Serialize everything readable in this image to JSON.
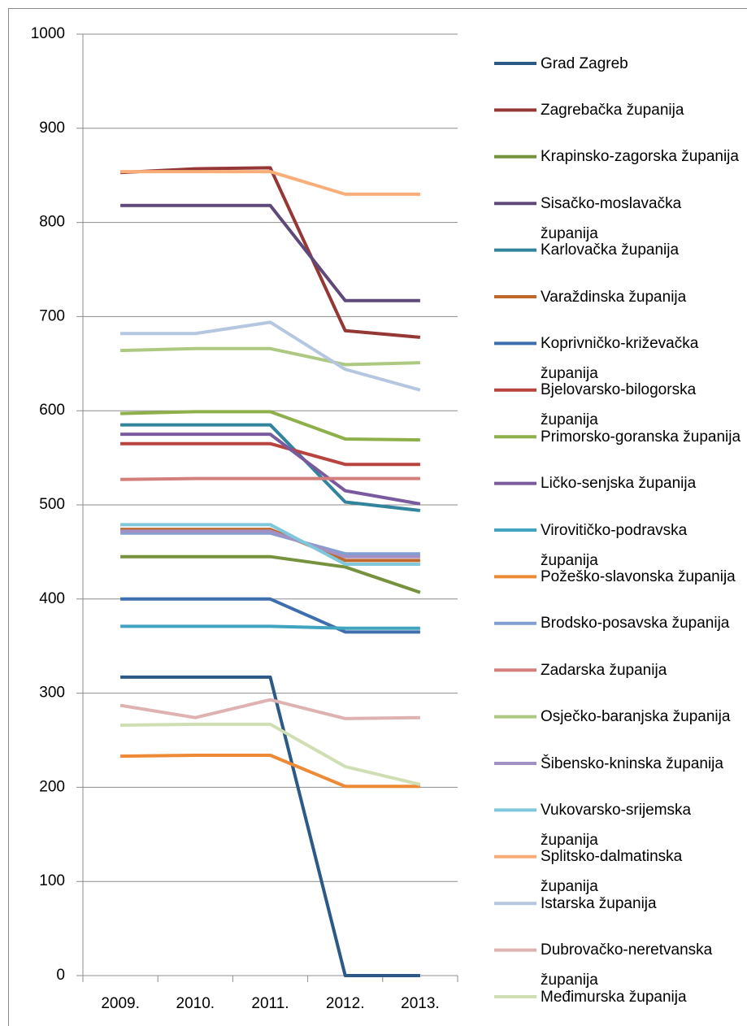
{
  "chart_data": {
    "type": "line",
    "categories": [
      "2009.",
      "2010.",
      "2011.",
      "2012.",
      "2013."
    ],
    "ylim": [
      0,
      1000
    ],
    "yticks": [
      0,
      100,
      200,
      300,
      400,
      500,
      600,
      700,
      800,
      900,
      1000
    ],
    "grid": true,
    "series": [
      {
        "name": "Grad Zagreb",
        "color": "#2c5985",
        "values": [
          317,
          317,
          317,
          0,
          0
        ]
      },
      {
        "name": "Zagrebačka županija",
        "color": "#953735",
        "values": [
          853,
          857,
          858,
          685,
          678
        ]
      },
      {
        "name": "Krapinsko-zagorska županija",
        "color": "#76923c",
        "values": [
          445,
          445,
          445,
          434,
          407
        ]
      },
      {
        "name": "Sisačko-moslavačka županija",
        "color": "#5f497a",
        "values": [
          818,
          818,
          818,
          717,
          717
        ]
      },
      {
        "name": "Karlovačka županija",
        "color": "#31849b",
        "values": [
          585,
          585,
          585,
          503,
          494
        ]
      },
      {
        "name": "Varaždinska županija",
        "color": "#c0682c",
        "values": [
          474,
          474,
          474,
          441,
          441
        ]
      },
      {
        "name": "Koprivničko-križevačka županija",
        "color": "#3d6fae",
        "values": [
          400,
          400,
          400,
          365,
          365
        ]
      },
      {
        "name": "Bjelovarsko-bilogorska županija",
        "color": "#b9433f",
        "values": [
          565,
          565,
          565,
          543,
          543
        ]
      },
      {
        "name": "Primorsko-goranska županija",
        "color": "#8eb04a",
        "values": [
          597,
          599,
          599,
          570,
          569
        ]
      },
      {
        "name": "Ličko-senjska županija",
        "color": "#7a5a9e",
        "values": [
          575,
          575,
          575,
          515,
          501
        ]
      },
      {
        "name": "Virovitičko-podravska županija",
        "color": "#41a4c0",
        "values": [
          371,
          371,
          371,
          369,
          369
        ]
      },
      {
        "name": "Požeško-slavonska županija",
        "color": "#ee8a36",
        "values": [
          233,
          234,
          234,
          201,
          201
        ]
      },
      {
        "name": "Brodsko-posavska županija",
        "color": "#809ed2",
        "values": [
          470,
          470,
          470,
          448,
          448
        ]
      },
      {
        "name": "Zadarska županija",
        "color": "#d37f7c",
        "values": [
          527,
          528,
          528,
          528,
          528
        ]
      },
      {
        "name": "Osječko-baranjska županija",
        "color": "#adc981",
        "values": [
          664,
          666,
          666,
          649,
          651
        ]
      },
      {
        "name": "Šibensko-kninska županija",
        "color": "#a491c3",
        "values": [
          472,
          472,
          472,
          445,
          445
        ]
      },
      {
        "name": "Vukovarsko-srijemska županija",
        "color": "#7fc7db",
        "values": [
          479,
          479,
          479,
          437,
          437
        ]
      },
      {
        "name": "Splitsko-dalmatinska županija",
        "color": "#f9ae79",
        "values": [
          854,
          854,
          854,
          830,
          830
        ]
      },
      {
        "name": "Istarska županija",
        "color": "#b4c6e0",
        "values": [
          682,
          682,
          694,
          644,
          622
        ]
      },
      {
        "name": "Dubrovačko-neretvanska županija",
        "color": "#ddb2b1",
        "values": [
          287,
          274,
          293,
          273,
          274
        ]
      },
      {
        "name": "Međimurska županija",
        "color": "#cfdfb3",
        "values": [
          266,
          267,
          267,
          222,
          203
        ]
      }
    ]
  }
}
